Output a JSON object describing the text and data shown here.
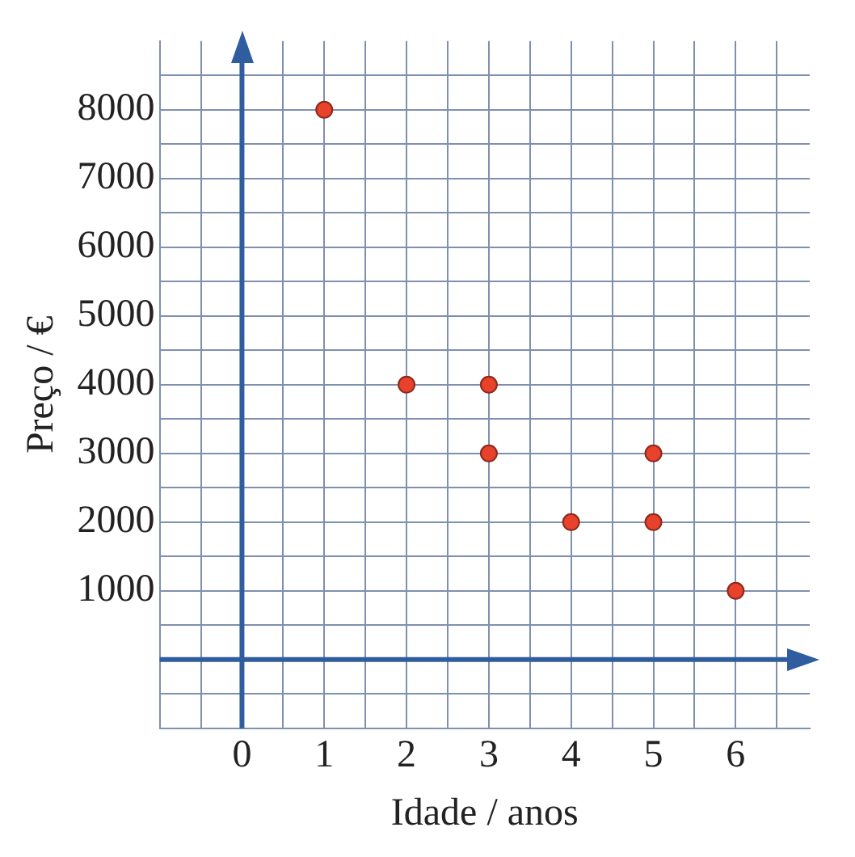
{
  "chart_data": {
    "type": "scatter",
    "xlabel": "Idade / anos",
    "ylabel": "Preço / €",
    "x": [
      1,
      2,
      3,
      3,
      4,
      5,
      5,
      6
    ],
    "values": [
      8000,
      4000,
      4000,
      3000,
      2000,
      3000,
      2000,
      1000
    ],
    "color": "#e8412c",
    "marker": "circle",
    "grid": true,
    "legend": false,
    "xlim": [
      -1,
      6.9
    ],
    "xticks": [
      {
        "value": -0.5,
        "label": null
      },
      0,
      {
        "value": 0.5,
        "label": null
      },
      1,
      {
        "value": 1.5,
        "label": null
      },
      2,
      {
        "value": 2.5,
        "label": null
      },
      3,
      {
        "value": 3.5,
        "label": null
      },
      4,
      {
        "value": 4.5,
        "label": null
      },
      5,
      {
        "value": 5.5,
        "label": null
      },
      6,
      {
        "value": 6.5,
        "label": null
      }
    ],
    "ylim": [
      -1000,
      9000
    ],
    "yticks": [
      {
        "value": -500,
        "label": null
      },
      {
        "value": 0,
        "label": null
      },
      {
        "value": 500,
        "label": null
      },
      1000,
      {
        "value": 1500,
        "label": null
      },
      2000,
      {
        "value": 2500,
        "label": null
      },
      3000,
      {
        "value": 3500,
        "label": null
      },
      4000,
      {
        "value": 4500,
        "label": null
      },
      5000,
      {
        "value": 5500,
        "label": null
      },
      6000,
      {
        "value": 6500,
        "label": null
      },
      7000,
      {
        "value": 7500,
        "label": null
      },
      8000,
      {
        "value": 8500,
        "label": null
      }
    ]
  }
}
